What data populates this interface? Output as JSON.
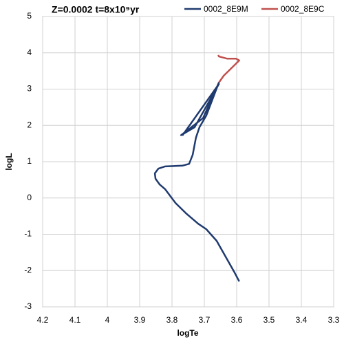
{
  "chart_data": {
    "type": "line",
    "title": "Z=0.0002 t=8x10⁹yr",
    "xlabel": "logTe",
    "ylabel": "logL",
    "xlim": [
      4.2,
      3.3
    ],
    "xticks": [
      4.2,
      4.1,
      4,
      3.9,
      3.8,
      3.7,
      3.6,
      3.5,
      3.4,
      3.3
    ],
    "ylim": [
      -3,
      5
    ],
    "yticks": [
      -3,
      -2,
      -1,
      0,
      1,
      2,
      3,
      4,
      5
    ],
    "grid": true,
    "legend": "top-right",
    "series": [
      {
        "name": "0002_8E9M",
        "color": "#1f3a6e",
        "x": [
          3.592,
          3.608,
          3.662,
          3.694,
          3.719,
          3.757,
          3.789,
          3.821,
          3.838,
          3.851,
          3.853,
          3.842,
          3.821,
          3.768,
          3.747,
          3.736,
          3.726,
          3.715,
          3.694,
          3.655,
          3.704,
          3.747,
          3.772,
          3.73,
          3.655,
          3.768
        ],
        "values": [
          -2.3,
          -2.03,
          -1.18,
          -0.86,
          -0.71,
          -0.42,
          -0.14,
          0.24,
          0.37,
          0.53,
          0.68,
          0.81,
          0.87,
          0.89,
          0.94,
          1.19,
          1.66,
          1.95,
          2.27,
          3.18,
          2.2,
          1.9,
          1.73,
          1.95,
          3.14,
          1.72
        ]
      },
      {
        "name": "0002_8E9C",
        "color": "#c0504d",
        "x": [
          3.655,
          3.64,
          3.608,
          3.592,
          3.602,
          3.63,
          3.655,
          3.657
        ],
        "values": [
          3.18,
          3.37,
          3.65,
          3.79,
          3.84,
          3.84,
          3.9,
          3.94
        ]
      }
    ]
  }
}
